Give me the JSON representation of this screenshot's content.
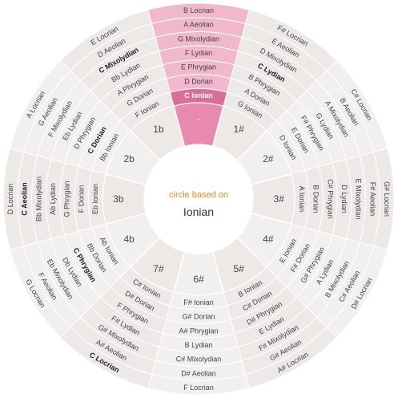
{
  "center": {
    "title": "circle based on",
    "name": "Ionian"
  },
  "colors": {
    "page_bg": "#ffffff",
    "wedge": "#f2f0ee",
    "wedge_alt": "#ece9e6",
    "line": "#ffffff",
    "active_wedge": "#f0b8ca",
    "active_strong": "#e78aae",
    "active_header": "#d96f99",
    "center_circle": "#ffffff",
    "center_title": "#e08a1e",
    "center_name": "#333333",
    "text": "#444444",
    "bold_text": "#222222",
    "header_text": "#ffffff"
  },
  "selected_key_index": 0,
  "keys": [
    {
      "signature": "-",
      "modes": [
        "C Ionian",
        "D Dorian",
        "E Phrygian",
        "F Lydian",
        "G Mixolydian",
        "A Aeolian",
        "B Locrian"
      ]
    },
    {
      "signature": "1#",
      "modes": [
        "G Ionian",
        "A Dorian",
        "B Phrygian",
        "C Lydian",
        "D Mixolydian",
        "E Aeolian",
        "F# Locrian"
      ]
    },
    {
      "signature": "2#",
      "modes": [
        "D Ionian",
        "E Dorian",
        "F# Phrygian",
        "G Lydian",
        "A Mixolydian",
        "B Aeolian",
        "C# Locrian"
      ]
    },
    {
      "signature": "3#",
      "modes": [
        "A Ionian",
        "B Dorian",
        "C# Phrygian",
        "D Lydian",
        "E Mixolydian",
        "F# Aeolian",
        "G# Locrian"
      ]
    },
    {
      "signature": "4#",
      "modes": [
        "E Ionian",
        "F# Dorian",
        "G# Phrygian",
        "A Lydian",
        "B Mixolydian",
        "C# Aeolian",
        "D# Locrian"
      ]
    },
    {
      "signature": "5#",
      "modes": [
        "B Ionian",
        "C# Dorian",
        "D# Phrygian",
        "E Lydian",
        "F# Mixolydian",
        "G# Aeolian",
        "A# Locrian"
      ]
    },
    {
      "signature": "6#",
      "modes": [
        "F# Ionian",
        "G# Dorian",
        "A# Phrygian",
        "B Lydian",
        "C# Mixolydian",
        "D# Aeolian",
        "F Locrian"
      ]
    },
    {
      "signature": "7#",
      "modes": [
        "C# Ionian",
        "D# Dorian",
        "F Phrygian",
        "F# Lydian",
        "G# Mixolydian",
        "A# Aeolian",
        "C Locrian"
      ]
    },
    {
      "signature": "4b",
      "modes": [
        "Ab Ionian",
        "Bb Dorian",
        "C Phrygian",
        "Db Lydian",
        "Eb Mixolydian",
        "F Aeolian",
        "G Locrian"
      ]
    },
    {
      "signature": "3b",
      "modes": [
        "Eb Ionian",
        "F Dorian",
        "G Phrygian",
        "Ab Lydian",
        "Bb Mixolydian",
        "C Aeolian",
        "D Locrian"
      ]
    },
    {
      "signature": "2b",
      "modes": [
        "Bb Ionian",
        "C Dorian",
        "D Phrygian",
        "Eb Lydian",
        "F Mixolydian",
        "G Aeolian",
        "A Locrian"
      ]
    },
    {
      "signature": "1b",
      "modes": [
        "F Ionian",
        "G Dorian",
        "A Phrygian",
        "Bb Lydian",
        "C Mixolydian",
        "D Aeolian",
        "E Locrian"
      ]
    }
  ]
}
